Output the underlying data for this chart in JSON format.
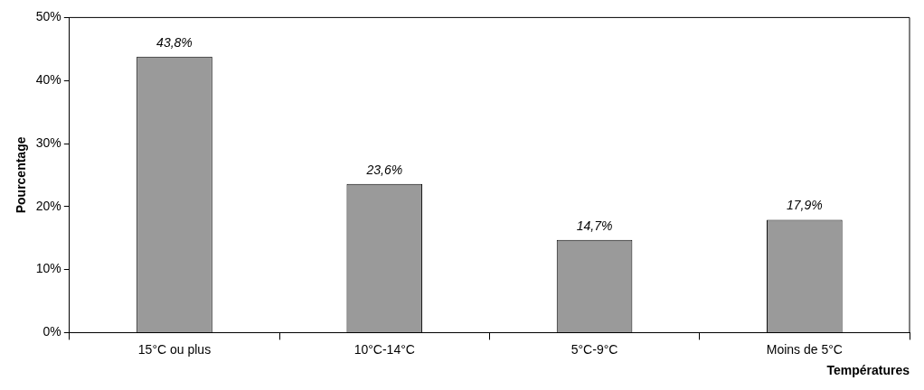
{
  "chart_data": {
    "type": "bar",
    "xlabel": "Températures",
    "ylabel": "Pourcentage",
    "categories": [
      "15°C ou plus",
      "10°C-14°C",
      "5°C-9°C",
      "Moins de 5°C"
    ],
    "values": [
      43.8,
      23.6,
      14.7,
      17.9
    ],
    "value_labels": [
      "43,8%",
      "23,6%",
      "14,7%",
      "17,9%"
    ],
    "color": "#9a9a9a",
    "ylim": [
      0,
      50
    ],
    "yticks": [
      {
        "value": 0,
        "label": "0%"
      },
      {
        "value": 10,
        "label": "10%"
      },
      {
        "value": 20,
        "label": "20%"
      },
      {
        "value": 30,
        "label": "30%"
      },
      {
        "value": 40,
        "label": "40%"
      },
      {
        "value": 50,
        "label": "50%"
      }
    ],
    "grid": false,
    "legend": false
  }
}
